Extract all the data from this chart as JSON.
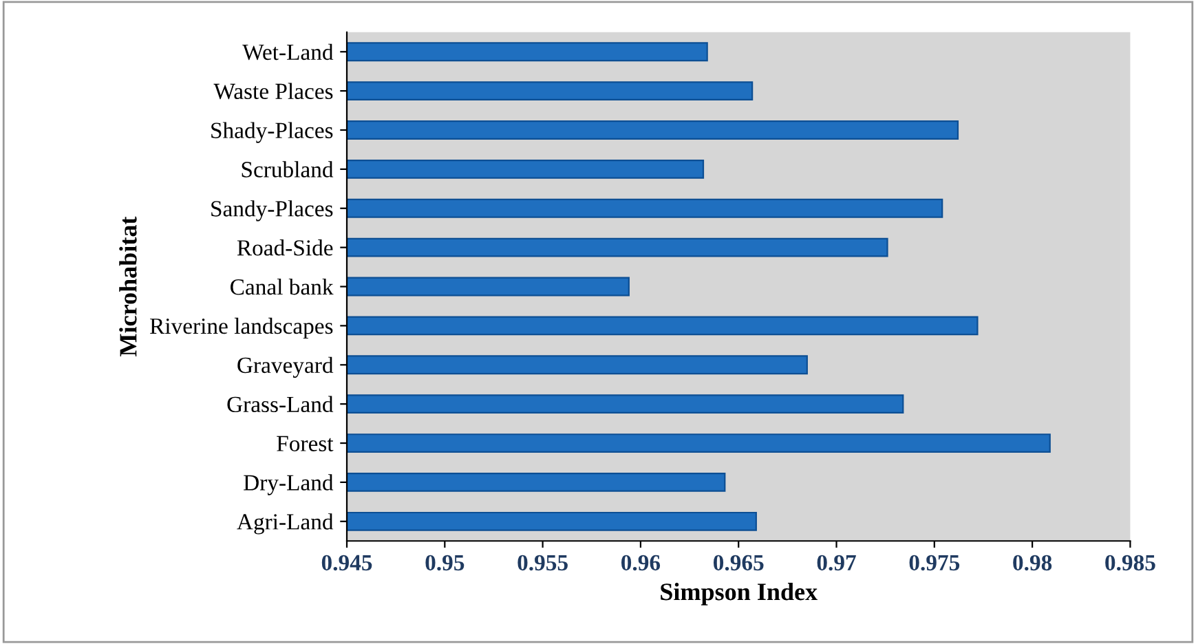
{
  "chart_data": {
    "type": "bar",
    "orientation": "horizontal",
    "xlabel": "Simpson Index",
    "ylabel": "Microhabitat",
    "categories": [
      "Wet-Land",
      "Waste Places",
      "Shady-Places",
      "Scrubland",
      "Sandy-Places",
      "Road-Side",
      "Canal bank",
      "Riverine landscapes",
      "Graveyard",
      "Grass-Land",
      "Forest",
      "Dry-Land",
      "Agri-Land"
    ],
    "values": [
      0.9634,
      0.9657,
      0.9762,
      0.9632,
      0.9754,
      0.9726,
      0.9594,
      0.9772,
      0.9685,
      0.9734,
      0.9809,
      0.9643,
      0.9659
    ],
    "color": "#1f6fbf",
    "xlim": [
      0.945,
      0.985
    ],
    "xticks": [
      0.945,
      0.95,
      0.955,
      0.96,
      0.965,
      0.97,
      0.975,
      0.98,
      0.985
    ],
    "grid": false,
    "legend": false
  }
}
